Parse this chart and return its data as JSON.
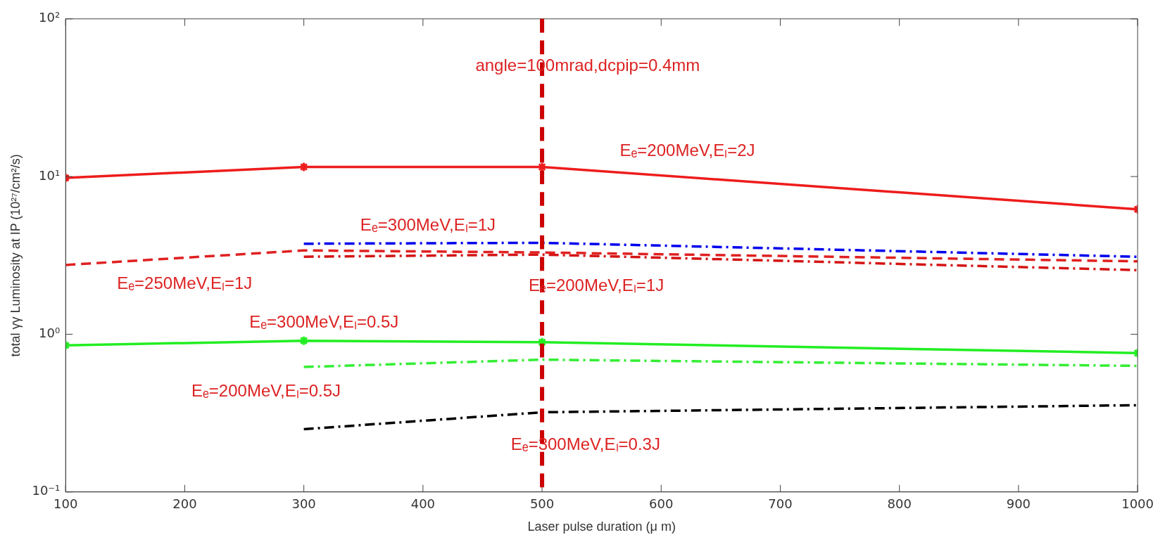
{
  "chart_data": {
    "type": "line",
    "xlabel": "Laser pulse duration (μ m)",
    "ylabel": "total γγ Luminosity at IP (10²⁷/cm²/s)",
    "xlim": [
      100,
      1000
    ],
    "xticks": [
      100,
      200,
      300,
      400,
      500,
      600,
      700,
      800,
      900,
      1000
    ],
    "ylim": [
      0.1,
      100
    ],
    "yticks": [
      {
        "value": 0.1,
        "label": "10⁻¹"
      },
      {
        "value": 1,
        "label": "10⁰"
      },
      {
        "value": 10,
        "label": "10¹"
      },
      {
        "value": 100,
        "label": "10²"
      }
    ],
    "log": "y",
    "legend": false,
    "series": [
      {
        "name": "Eₑ=200MeV,Eₗ=2J",
        "color": "#ee1c1c",
        "x": [
          100,
          300,
          500,
          1000
        ],
        "values": [
          9.8,
          11.5,
          11.5,
          6.2
        ],
        "line_style": "solid",
        "marker": "cross"
      },
      {
        "name": "Eₑ=300MeV,Eₗ=1J",
        "color": "#0000ee",
        "x": [
          300,
          500,
          1000
        ],
        "values": [
          3.75,
          3.8,
          3.1
        ],
        "line_style": "dashdot",
        "marker": "none"
      },
      {
        "name": "Eₑ=250MeV,Eₗ=1J",
        "color": "#e02020",
        "x": [
          100,
          300,
          500,
          1000
        ],
        "values": [
          2.75,
          3.4,
          3.3,
          2.9
        ],
        "line_style": "dashed",
        "marker": "none"
      },
      {
        "name": "Eₑ=200MeV,Eₗ=1J",
        "color": "#d41414",
        "x": [
          300,
          500,
          1000
        ],
        "values": [
          3.1,
          3.2,
          2.55
        ],
        "line_style": "dashdot",
        "marker": "none"
      },
      {
        "name": "Eₑ=300MeV,Eₗ=0.5J",
        "color": "#22ee22",
        "x": [
          100,
          300,
          500,
          1000
        ],
        "values": [
          0.85,
          0.91,
          0.89,
          0.76
        ],
        "line_style": "solid",
        "marker": "cross"
      },
      {
        "name": "Eₑ=200MeV,Eₗ=0.5J",
        "color": "#33ee33",
        "x": [
          300,
          500,
          1000
        ],
        "values": [
          0.62,
          0.69,
          0.63
        ],
        "line_style": "dashdot",
        "marker": "none"
      },
      {
        "name": "Eₑ=300MeV,Eₗ=0.3J",
        "color": "#000000",
        "x": [
          300,
          500,
          1000
        ],
        "values": [
          0.25,
          0.32,
          0.355
        ],
        "line_style": "dashdot",
        "marker": "none"
      }
    ],
    "ref_lines": [
      {
        "axis": "x",
        "value": 500,
        "color": "#cc0000",
        "line_style": "dashed"
      }
    ],
    "annotations": [
      "angle=100mrad,dcpip=0.4mm"
    ]
  }
}
